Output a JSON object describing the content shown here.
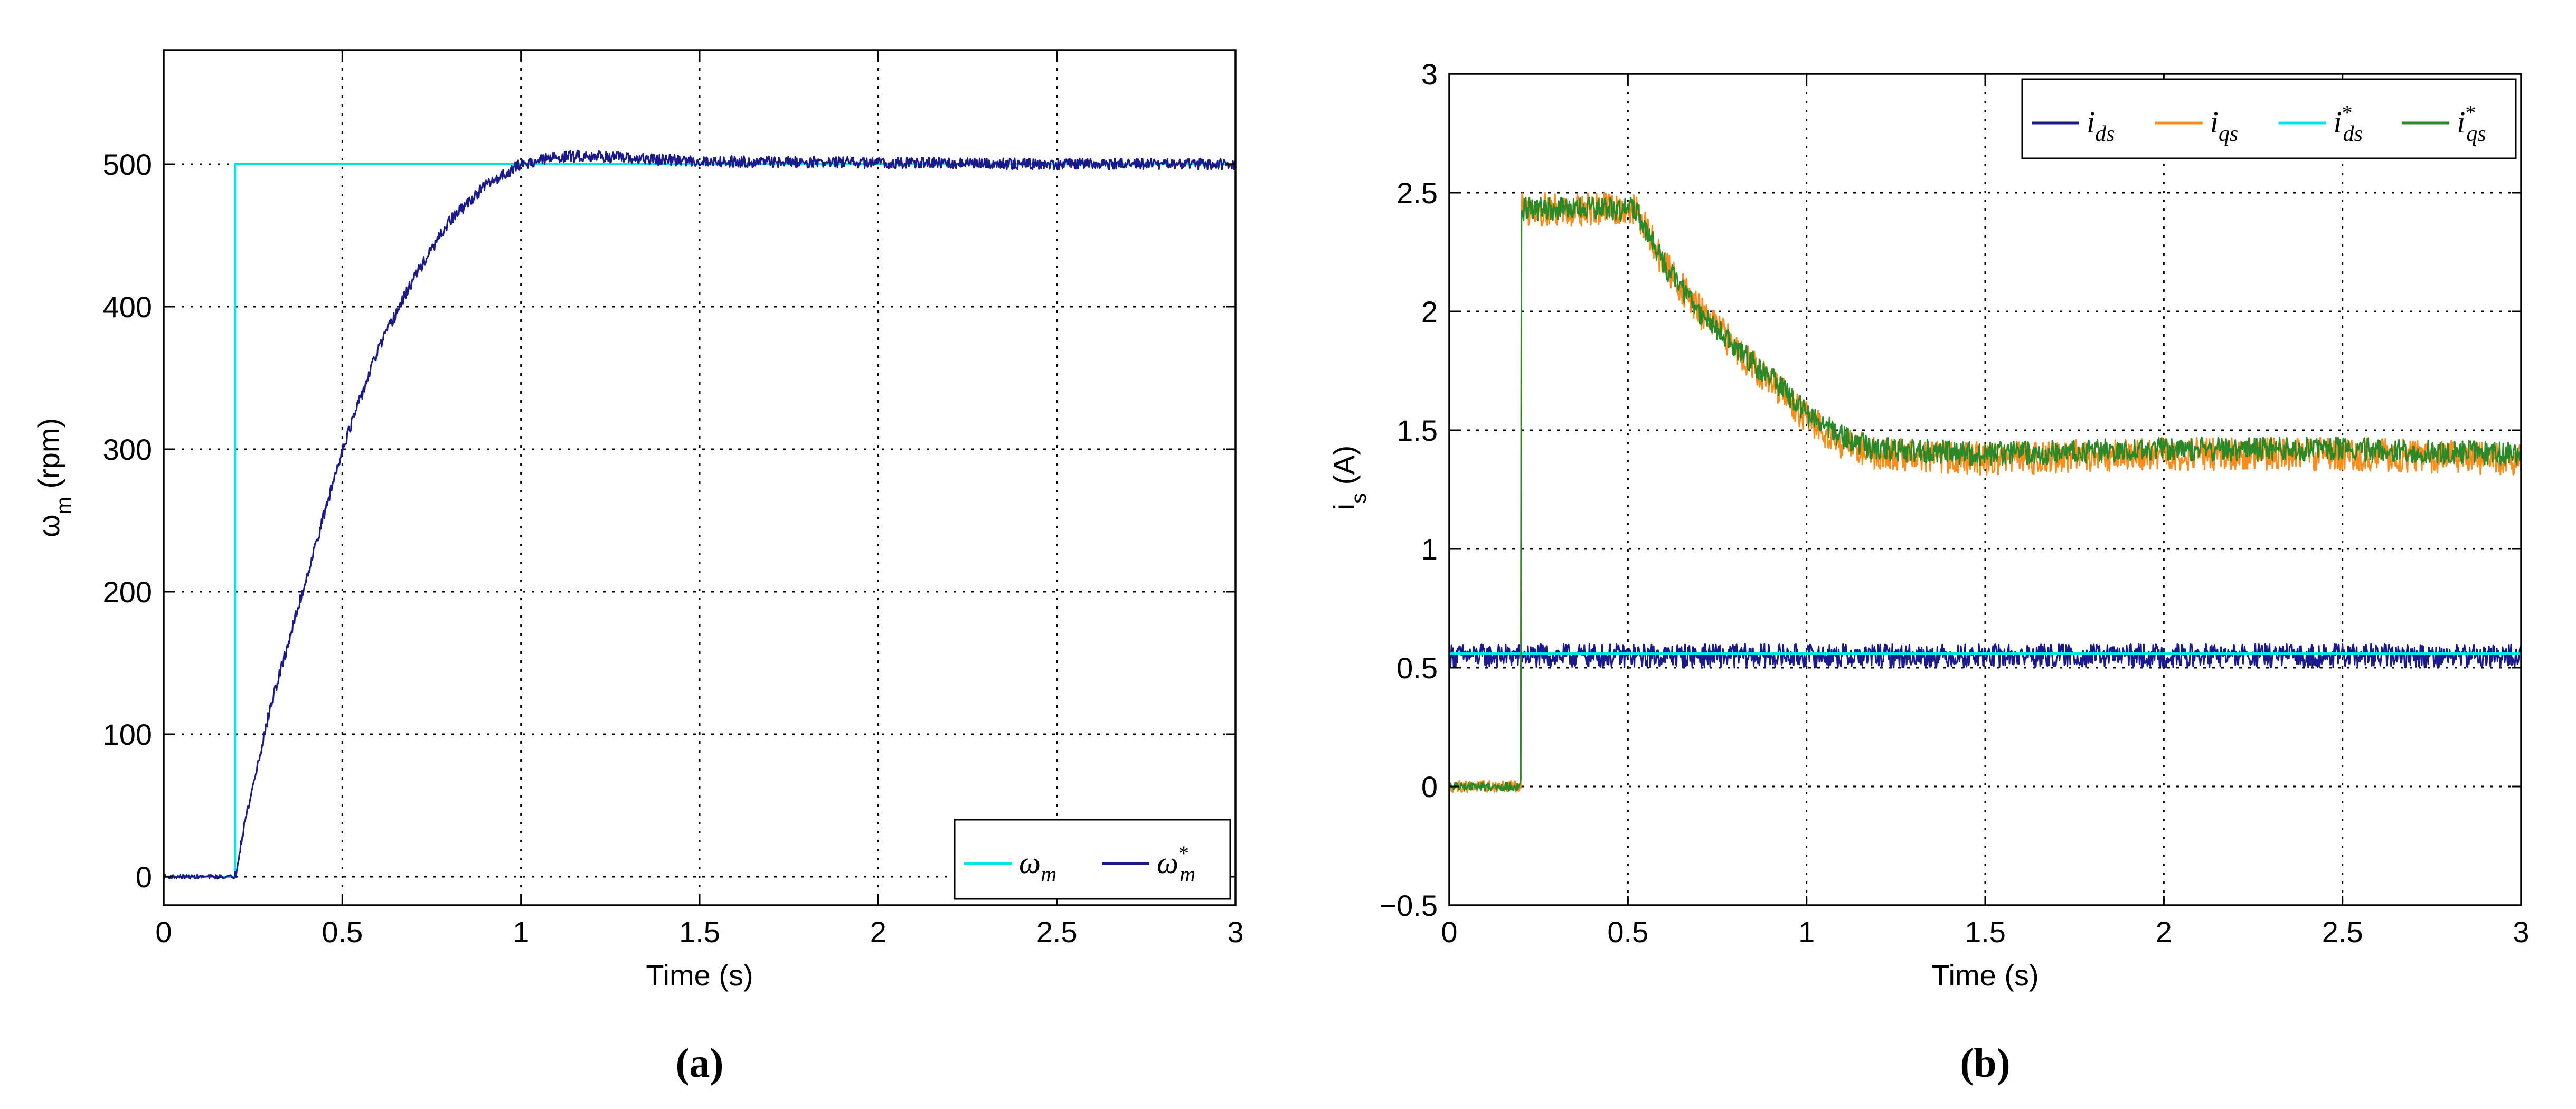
{
  "chart_data": [
    {
      "id": "a",
      "type": "line",
      "caption": "(a)",
      "xlabel": "Time (s)",
      "ylabel": "ω_m (rpm)",
      "xlim": [
        0,
        3
      ],
      "ylim": [
        -20,
        580
      ],
      "xticks": [
        0,
        0.5,
        1,
        1.5,
        2,
        2.5,
        3
      ],
      "xtick_labels": [
        "0",
        "0.5",
        "1",
        "1.5",
        "2",
        "2.5",
        "3"
      ],
      "yticks": [
        0,
        100,
        200,
        300,
        400,
        500
      ],
      "ytick_labels": [
        "0",
        "100",
        "200",
        "300",
        "400",
        "500"
      ],
      "grid": true,
      "legend_position": "bottom-right",
      "series": [
        {
          "name": "ω_m",
          "color": "#00e5e5",
          "noise": 0,
          "points": [
            [
              0,
              0
            ],
            [
              0.2,
              0
            ],
            [
              0.2,
              500
            ],
            [
              3,
              500
            ]
          ]
        },
        {
          "name": "ω_m*",
          "color": "#1a1a8c",
          "noise": 4,
          "points": [
            [
              0,
              0
            ],
            [
              0.2,
              0
            ],
            [
              0.22,
              30
            ],
            [
              0.3,
              120
            ],
            [
              0.4,
              210
            ],
            [
              0.5,
              300
            ],
            [
              0.6,
              370
            ],
            [
              0.7,
              420
            ],
            [
              0.8,
              460
            ],
            [
              0.9,
              485
            ],
            [
              1.0,
              500
            ],
            [
              1.1,
              505
            ],
            [
              1.2,
              506
            ],
            [
              1.3,
              504
            ],
            [
              1.5,
              502
            ],
            [
              2.0,
              501
            ],
            [
              2.5,
              500
            ],
            [
              3,
              500
            ]
          ]
        }
      ]
    },
    {
      "id": "b",
      "type": "line",
      "caption": "(b)",
      "xlabel": "Time (s)",
      "ylabel": "i_s (A)",
      "xlim": [
        0,
        3
      ],
      "ylim": [
        -0.5,
        3
      ],
      "xticks": [
        0,
        0.5,
        1,
        1.5,
        2,
        2.5,
        3
      ],
      "xtick_labels": [
        "0",
        "0.5",
        "1",
        "1.5",
        "2",
        "2.5",
        "3"
      ],
      "yticks": [
        -0.5,
        0,
        0.5,
        1,
        1.5,
        2,
        2.5,
        3
      ],
      "ytick_labels": [
        "−0.5",
        "0",
        "0.5",
        "1",
        "1.5",
        "2",
        "2.5",
        "3"
      ],
      "grid": true,
      "legend_position": "top-right",
      "series": [
        {
          "name": "i_ds",
          "color": "#1a1a8c",
          "noise": 0.05,
          "points": [
            [
              0,
              0.55
            ],
            [
              3,
              0.55
            ]
          ]
        },
        {
          "name": "i_qs",
          "color": "#ff8c1a",
          "noise": 0.07,
          "points": [
            [
              0,
              0
            ],
            [
              0.2,
              0
            ],
            [
              0.2,
              2.43
            ],
            [
              0.52,
              2.43
            ],
            [
              0.6,
              2.2
            ],
            [
              0.7,
              2.0
            ],
            [
              0.8,
              1.85
            ],
            [
              0.9,
              1.7
            ],
            [
              1.0,
              1.55
            ],
            [
              1.1,
              1.45
            ],
            [
              1.2,
              1.4
            ],
            [
              1.5,
              1.38
            ],
            [
              2.0,
              1.4
            ],
            [
              2.5,
              1.4
            ],
            [
              3,
              1.38
            ]
          ]
        },
        {
          "name": "i_ds*",
          "color": "#00e5e5",
          "noise": 0,
          "points": [
            [
              0,
              0.56
            ],
            [
              3,
              0.56
            ]
          ]
        },
        {
          "name": "i_qs*",
          "color": "#2a8a2a",
          "noise": 0.05,
          "points": [
            [
              0,
              0
            ],
            [
              0.2,
              0
            ],
            [
              0.2,
              2.43
            ],
            [
              0.52,
              2.43
            ],
            [
              0.6,
              2.2
            ],
            [
              0.7,
              2.0
            ],
            [
              0.8,
              1.85
            ],
            [
              0.9,
              1.72
            ],
            [
              1.0,
              1.57
            ],
            [
              1.1,
              1.47
            ],
            [
              1.2,
              1.42
            ],
            [
              1.5,
              1.4
            ],
            [
              2.0,
              1.42
            ],
            [
              2.5,
              1.42
            ],
            [
              3,
              1.4
            ]
          ]
        }
      ]
    }
  ]
}
